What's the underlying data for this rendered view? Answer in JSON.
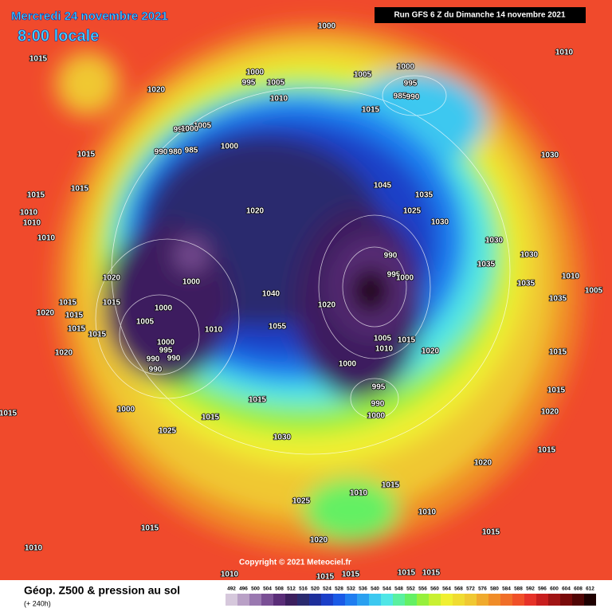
{
  "header": {
    "date": "Mercredi 24 novembre 2021",
    "time": "8:00 locale",
    "run": "Run GFS 6 Z du Dimanche 14 novembre 2021"
  },
  "copyright": "Copyright © 2021 Meteociel.fr",
  "footer": {
    "title": "Géop. Z500 & pression au sol",
    "subtitle": "(+ 240h)"
  },
  "colorbar": {
    "values": [
      492,
      496,
      500,
      504,
      508,
      512,
      516,
      520,
      524,
      528,
      532,
      536,
      540,
      544,
      548,
      552,
      556,
      560,
      564,
      568,
      572,
      576,
      580,
      584,
      588,
      592,
      596,
      600,
      604,
      608,
      612
    ],
    "colors": [
      "#d6c8dc",
      "#b9a0c6",
      "#9a78b0",
      "#7a4f95",
      "#5a2d78",
      "#3c1f5e",
      "#2a2a6e",
      "#1e2f9a",
      "#1b3fc8",
      "#1a5ae6",
      "#1f7df0",
      "#2aa0f0",
      "#3cc8f0",
      "#50e6e6",
      "#5af0a0",
      "#64f064",
      "#96f03c",
      "#c8f032",
      "#f0f032",
      "#f0dc32",
      "#f0c832",
      "#f0aa2d",
      "#f08c28",
      "#f06e28",
      "#f05028",
      "#e63228",
      "#c81e1e",
      "#a01414",
      "#780a0a",
      "#500505",
      "#1e0000"
    ]
  },
  "pressure_labels": [
    1015,
    1020,
    1000,
    1010,
    1000,
    995,
    1005,
    1010,
    1005,
    1000,
    995,
    985,
    990,
    1015,
    1005,
    995,
    1000,
    990,
    980,
    985,
    1000,
    1015,
    1030,
    1015,
    1015,
    1045,
    1035,
    1020,
    1025,
    1010,
    1010,
    1010,
    1030,
    1030,
    1030,
    1035,
    990,
    1020,
    1000,
    995,
    1000,
    1035,
    1010,
    1005,
    1035,
    1040,
    1015,
    1015,
    1020,
    1000,
    1020,
    1015,
    1005,
    1015,
    1015,
    1010,
    1055,
    1005,
    1015,
    1000,
    995,
    990,
    990,
    1010,
    1020,
    1015,
    1020,
    990,
    1000,
    995,
    990,
    1000,
    1015,
    1015,
    1000,
    1015,
    1015,
    1020,
    1025,
    1030,
    1015,
    1020,
    1015,
    1010,
    1025,
    1010,
    1015,
    1015,
    1020,
    1010,
    1010,
    1015,
    1015,
    1015,
    1015
  ]
}
